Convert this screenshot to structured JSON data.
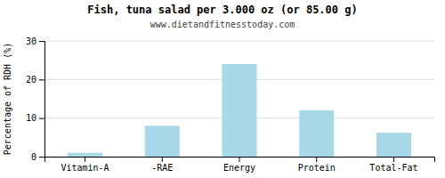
{
  "chart_data": {
    "type": "bar",
    "title": "Fish, tuna salad per 3.000 oz (or 85.00 g)",
    "subtitle": "www.dietandfitnesstoday.com",
    "categories": [
      "Vitamin-A",
      "-RAE",
      "Energy",
      "Protein",
      "Total-Fat"
    ],
    "values": [
      1.0,
      8.0,
      24.0,
      12.0,
      6.2
    ],
    "color": "#a8d8e8",
    "ylabel": "Percentage of RDH (%)",
    "ylim": [
      0,
      30
    ],
    "yticks": [
      0,
      10,
      20,
      30
    ],
    "grid": true
  }
}
